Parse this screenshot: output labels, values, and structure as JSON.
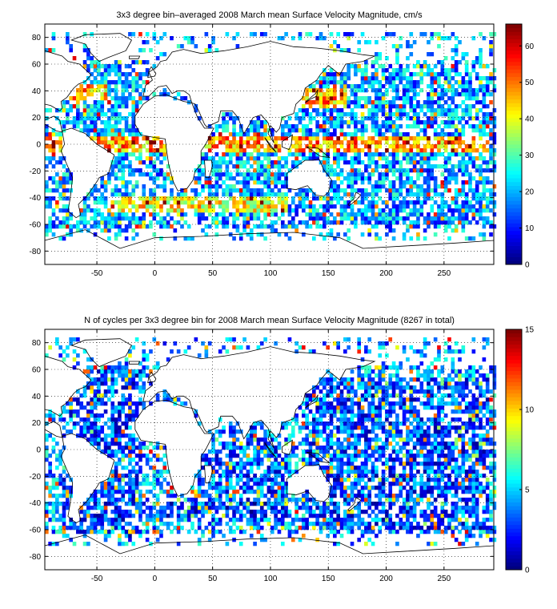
{
  "chart_data": [
    {
      "type": "heatmap",
      "title": "3x3 degree bin–averaged 2008 March mean Surface Velocity Magnitude, cm/s",
      "xlabel": "",
      "ylabel": "",
      "xlim": [
        -95,
        293
      ],
      "ylim": [
        -90,
        90
      ],
      "xticks": [
        -50,
        0,
        50,
        100,
        150,
        200,
        250
      ],
      "yticks": [
        -80,
        -60,
        -40,
        -20,
        0,
        20,
        40,
        60,
        80
      ],
      "grid": true,
      "bin_size_deg": 3,
      "colorbar": {
        "label": "cm/s",
        "min": 0,
        "max": 66,
        "ticks": [
          0,
          10,
          20,
          30,
          40,
          50,
          60
        ],
        "colormap": "jet"
      },
      "regions": [
        {
          "x": [
            -80,
            -10
          ],
          "y": [
            -65,
            60
          ],
          "level": 0.3
        },
        {
          "x": [
            130,
            290
          ],
          "y": [
            -60,
            55
          ],
          "level": 0.28
        },
        {
          "x": [
            30,
            115
          ],
          "y": [
            -55,
            20
          ],
          "level": 0.3
        },
        {
          "x": [
            -95,
            290
          ],
          "y": [
            -5,
            5
          ],
          "level": 0.72
        },
        {
          "x": [
            -40,
            115
          ],
          "y": [
            -50,
            -38
          ],
          "level": 0.62
        },
        {
          "x": [
            -80,
            -40
          ],
          "y": [
            32,
            46
          ],
          "level": 0.7
        },
        {
          "x": [
            125,
            165
          ],
          "y": [
            28,
            42
          ],
          "level": 0.7
        }
      ]
    },
    {
      "type": "heatmap",
      "title": "N of cycles per 3x3 degree bin for 2008 March mean Surface Velocity Magnitude (8267 in total)",
      "xlabel": "",
      "ylabel": "",
      "xlim": [
        -95,
        293
      ],
      "ylim": [
        -90,
        90
      ],
      "xticks": [
        -50,
        0,
        50,
        100,
        150,
        200,
        250
      ],
      "yticks": [
        -80,
        -60,
        -40,
        -20,
        0,
        20,
        40,
        60,
        80
      ],
      "grid": true,
      "bin_size_deg": 3,
      "total_cycles": 8267,
      "colorbar": {
        "label": "",
        "min": 0,
        "max": 15,
        "ticks": [
          0,
          5,
          10,
          15
        ],
        "colormap": "jet"
      },
      "regions": [
        {
          "x": [
            -80,
            -10
          ],
          "y": [
            -65,
            60
          ],
          "level": 0.2
        },
        {
          "x": [
            130,
            290
          ],
          "y": [
            -60,
            55
          ],
          "level": 0.2
        },
        {
          "x": [
            30,
            115
          ],
          "y": [
            -55,
            20
          ],
          "level": 0.22
        },
        {
          "x": [
            -40,
            115
          ],
          "y": [
            -50,
            -38
          ],
          "level": 0.18
        }
      ]
    }
  ]
}
